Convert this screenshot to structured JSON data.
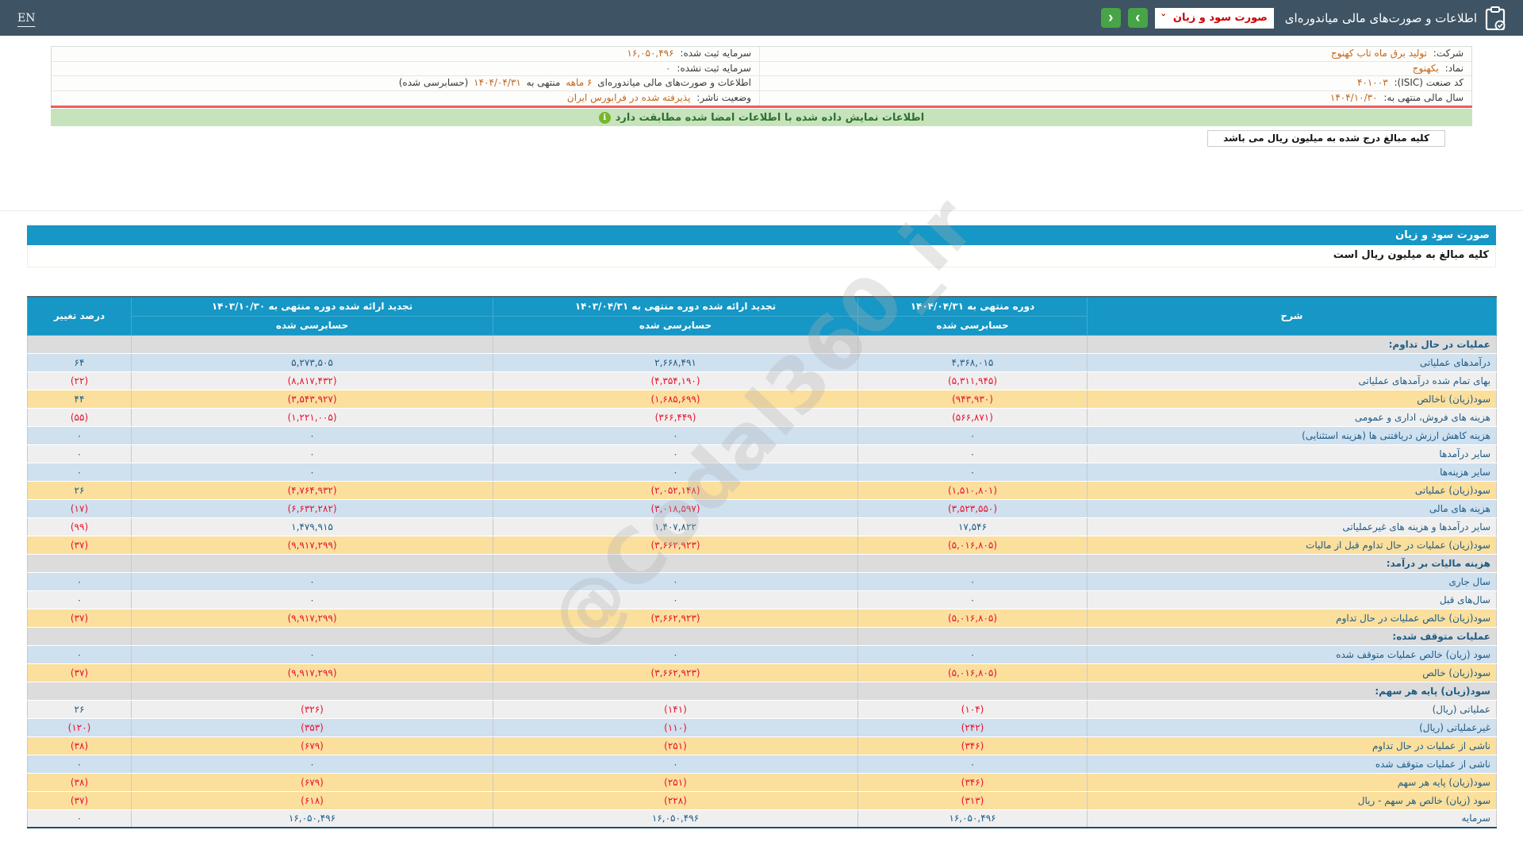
{
  "topbar": {
    "en_label": "EN",
    "title": "اطلاعات و صورت‌های مالی میاندوره‌ای",
    "dropdown_value": "صورت سود و زیان",
    "dropdown_chevron": "˅",
    "next_label": "›",
    "prev_label": "‹"
  },
  "info": {
    "company_label": "شرکت:",
    "company_value": "تولید برق ماه تاب کهنوج",
    "symbol_label": "نماد:",
    "symbol_value": "بکهنوج",
    "isic_label": "کد صنعت (ISIC):",
    "isic_value": "۴۰۱۰۰۳",
    "fiscal_year_label": "سال مالی منتهی به:",
    "fiscal_year_value": "۱۴۰۴/۱۰/۳۰",
    "registered_capital_label": "سرمایه ثبت شده:",
    "registered_capital_value": "۱۶,۰۵۰,۴۹۶",
    "unregistered_capital_label": "سرمایه ثبت نشده:",
    "unregistered_capital_value": "۰",
    "period_prefix": "اطلاعات و صورت‌های مالی میاندوره‌ای",
    "period_months": "۶ ماهه",
    "period_mid": "منتهی به",
    "period_date": "۱۴۰۴/۰۴/۳۱",
    "period_suffix": "(حسابرسی شده)",
    "issuer_label": "وضعیت ناشر:",
    "issuer_value": "پذیرفته شده در فرابورس ایران"
  },
  "banner": {
    "text": "اطلاعات نمایش داده شده با اطلاعات امضا شده مطابقت دارد",
    "icon": "i"
  },
  "unit_tab": "کلیه مبالغ درج شده به میلیون ریال می باشد",
  "section_bar_title": "صورت سود و زیان",
  "unit_note": "کلیه مبالغ به میلیون ریال است",
  "watermark": "@Codal360_ir",
  "colors": {
    "topbar": "#3e5363",
    "accent_teal": "#1697c5",
    "green_button": "#47a447",
    "banner_green": "#c7e3bc",
    "red_line": "#ee5c5c",
    "orange_value": "#c4661b",
    "negative_red": "#e8112d",
    "positive_navy": "#1f5c85",
    "row_blue": "#cfe0ef",
    "row_gray": "#efefef",
    "row_yellow": "#fbdf9d",
    "row_section": "#dcdcdc"
  },
  "table": {
    "headers": {
      "desc": "شرح",
      "col1": "دوره منتهی به ۱۴۰۴/۰۴/۳۱",
      "col2": "تجدید ارائه شده دوره منتهی به ۱۴۰۳/۰۴/۳۱",
      "col3": "تجدید ارائه شده دوره منتهی به ۱۴۰۳/۱۰/۳۰",
      "pct": "درصد تغییر",
      "audited": "حسابرسی شده"
    },
    "rows": [
      {
        "type": "section",
        "label": "عملیات در حال تداوم:"
      },
      {
        "type": "data",
        "style": "blue",
        "label": "درآمدهای عملیاتی",
        "v1": "۴,۳۶۸,۰۱۵",
        "v2": "۲,۶۶۸,۴۹۱",
        "v3": "۵,۲۷۳,۵۰۵",
        "pct": "۶۴"
      },
      {
        "type": "data",
        "style": "gray",
        "label": "بهای تمام شده درآمدهای عملیاتی",
        "v1": "(۵,۳۱۱,۹۴۵)",
        "v2": "(۴,۳۵۴,۱۹۰)",
        "v3": "(۸,۸۱۷,۴۳۲)",
        "pct": "(۲۲)"
      },
      {
        "type": "data",
        "style": "yellow",
        "label": "سود(زیان) ناخالص",
        "v1": "(۹۴۳,۹۳۰)",
        "v2": "(۱,۶۸۵,۶۹۹)",
        "v3": "(۳,۵۴۳,۹۲۷)",
        "pct": "۴۴"
      },
      {
        "type": "data",
        "style": "gray",
        "label": "هزینه های فروش، اداری و عمومی",
        "v1": "(۵۶۶,۸۷۱)",
        "v2": "(۳۶۶,۴۴۹)",
        "v3": "(۱,۲۲۱,۰۰۵)",
        "pct": "(۵۵)"
      },
      {
        "type": "data",
        "style": "blue",
        "label": "هزینه کاهش ارزش دریافتنی ها (هزینه استثنایی)",
        "v1": "۰",
        "v2": "۰",
        "v3": "۰",
        "pct": "۰"
      },
      {
        "type": "data",
        "style": "gray",
        "label": "سایر درآمدها",
        "v1": "۰",
        "v2": "۰",
        "v3": "۰",
        "pct": "۰"
      },
      {
        "type": "data",
        "style": "blue",
        "label": "سایر هزینه‌ها",
        "v1": "۰",
        "v2": "۰",
        "v3": "۰",
        "pct": "۰"
      },
      {
        "type": "data",
        "style": "yellow",
        "label": "سود(زیان) عملیاتی",
        "v1": "(۱,۵۱۰,۸۰۱)",
        "v2": "(۲,۰۵۲,۱۴۸)",
        "v3": "(۴,۷۶۴,۹۳۲)",
        "pct": "۲۶"
      },
      {
        "type": "data",
        "style": "blue",
        "label": "هزینه های مالی",
        "v1": "(۳,۵۲۳,۵۵۰)",
        "v2": "(۳,۰۱۸,۵۹۷)",
        "v3": "(۶,۶۳۲,۲۸۲)",
        "pct": "(۱۷)"
      },
      {
        "type": "data",
        "style": "gray",
        "label": "سایر درآمدها و هزینه های غیرعملیاتی",
        "v1": "۱۷,۵۴۶",
        "v2": "۱,۴۰۷,۸۲۲",
        "v3": "۱,۴۷۹,۹۱۵",
        "pct": "(۹۹)"
      },
      {
        "type": "data",
        "style": "yellow",
        "label": "سود(زیان) عملیات در حال تداوم قبل از مالیات",
        "v1": "(۵,۰۱۶,۸۰۵)",
        "v2": "(۳,۶۶۲,۹۲۳)",
        "v3": "(۹,۹۱۷,۲۹۹)",
        "pct": "(۳۷)"
      },
      {
        "type": "section",
        "label": "هزینه مالیات بر درآمد:"
      },
      {
        "type": "data",
        "style": "blue",
        "label": "سال جاری",
        "v1": "۰",
        "v2": "۰",
        "v3": "۰",
        "pct": "۰"
      },
      {
        "type": "data",
        "style": "gray",
        "label": "سال‌های قبل",
        "v1": "۰",
        "v2": "۰",
        "v3": "۰",
        "pct": "۰"
      },
      {
        "type": "data",
        "style": "yellow",
        "label": "سود(زیان) خالص عملیات در حال تداوم",
        "v1": "(۵,۰۱۶,۸۰۵)",
        "v2": "(۳,۶۶۲,۹۲۳)",
        "v3": "(۹,۹۱۷,۲۹۹)",
        "pct": "(۳۷)"
      },
      {
        "type": "section",
        "label": "عملیات متوقف شده:"
      },
      {
        "type": "data",
        "style": "blue",
        "label": "سود (زیان) خالص عملیات متوقف شده",
        "v1": "۰",
        "v2": "۰",
        "v3": "۰",
        "pct": "۰"
      },
      {
        "type": "data",
        "style": "yellow",
        "label": "سود(زیان) خالص",
        "v1": "(۵,۰۱۶,۸۰۵)",
        "v2": "(۳,۶۶۲,۹۲۳)",
        "v3": "(۹,۹۱۷,۲۹۹)",
        "pct": "(۳۷)"
      },
      {
        "type": "section",
        "label": "سود(زیان) پایه هر سهم:"
      },
      {
        "type": "data",
        "style": "gray",
        "label": "عملیاتی (ریال)",
        "v1": "(۱۰۴)",
        "v2": "(۱۴۱)",
        "v3": "(۳۲۶)",
        "pct": "۲۶"
      },
      {
        "type": "data",
        "style": "blue",
        "label": "غیرعملیاتی (ریال)",
        "v1": "(۲۴۲)",
        "v2": "(۱۱۰)",
        "v3": "(۳۵۳)",
        "pct": "(۱۲۰)"
      },
      {
        "type": "data",
        "style": "yellow",
        "label": "ناشی از عملیات در حال تداوم",
        "v1": "(۳۴۶)",
        "v2": "(۲۵۱)",
        "v3": "(۶۷۹)",
        "pct": "(۳۸)"
      },
      {
        "type": "data",
        "style": "blue",
        "label": "ناشی از عملیات متوقف شده",
        "v1": "۰",
        "v2": "۰",
        "v3": "۰",
        "pct": "۰"
      },
      {
        "type": "data",
        "style": "yellow",
        "label": "سود(زیان) پایه هر سهم",
        "v1": "(۳۴۶)",
        "v2": "(۲۵۱)",
        "v3": "(۶۷۹)",
        "pct": "(۳۸)"
      },
      {
        "type": "data",
        "style": "yellow",
        "label": "سود (زیان) خالص هر سهم - ریال",
        "v1": "(۳۱۳)",
        "v2": "(۲۲۸)",
        "v3": "(۶۱۸)",
        "pct": "(۳۷)"
      },
      {
        "type": "data",
        "style": "gray",
        "label": "سرمایه",
        "v1": "۱۶,۰۵۰,۴۹۶",
        "v2": "۱۶,۰۵۰,۴۹۶",
        "v3": "۱۶,۰۵۰,۴۹۶",
        "pct": "۰"
      }
    ]
  }
}
